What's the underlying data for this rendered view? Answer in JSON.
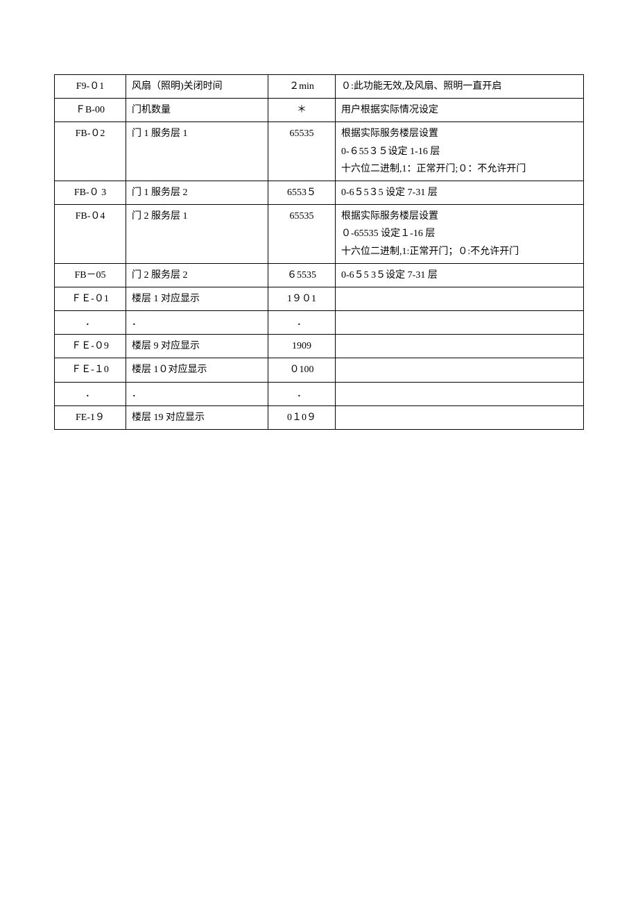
{
  "table": {
    "rows": [
      {
        "code": "F9-０1",
        "name": "风扇（照明)关闭时间",
        "value": "２min",
        "desc": "０:此功能无效,及风扇、照明一直开启"
      },
      {
        "code": "ＦB-00",
        "name": "门机数量",
        "value": "＊",
        "desc": "用户根据实际情况设定"
      },
      {
        "code": "FB-０2",
        "name": "门 1 服务层 1",
        "value": "65535",
        "desc": "根据实际服务楼层设置\n0-６55３５设定 1-16 层\n十六位二进制,1：正常开门;０：不允许开门"
      },
      {
        "code": "FB-０ 3",
        "name": "门 1 服务层 2",
        "value": "6553５",
        "desc": "0-6５5３5 设定 7-31 层"
      },
      {
        "code": "FB-０4",
        "name": "门 2 服务层 1",
        "value": "65535",
        "desc": "根据实际服务楼层设置\n０-65535 设定１-16 层\n十六位二进制,1:正常开门；０:不允许开门"
      },
      {
        "code": "FB－05",
        "name": "门 2 服务层 2",
        "value": "６5535",
        "desc": "0-6５5 3５设定 7-31 层"
      },
      {
        "code": "ＦＥ-０1",
        "name": "楼层 1 对应显示",
        "value": "1９０1",
        "desc": ""
      },
      {
        "code": "．",
        "name": "．",
        "value": "．",
        "desc": ""
      },
      {
        "code": "ＦＥ-０9",
        "name": "楼层 9 对应显示",
        "value": "1909",
        "desc": ""
      },
      {
        "code": "ＦＥ-１0",
        "name": "楼层 1０对应显示",
        "value": "０100",
        "desc": ""
      },
      {
        "code": "．",
        "name": "．",
        "value": "．",
        "desc": ""
      },
      {
        "code": "FE-1９",
        "name": "楼层 19 对应显示",
        "value": "0１0９",
        "desc": ""
      }
    ],
    "border_color": "#000000",
    "text_color": "#000000",
    "background_color": "#ffffff",
    "fontsize": 14
  }
}
